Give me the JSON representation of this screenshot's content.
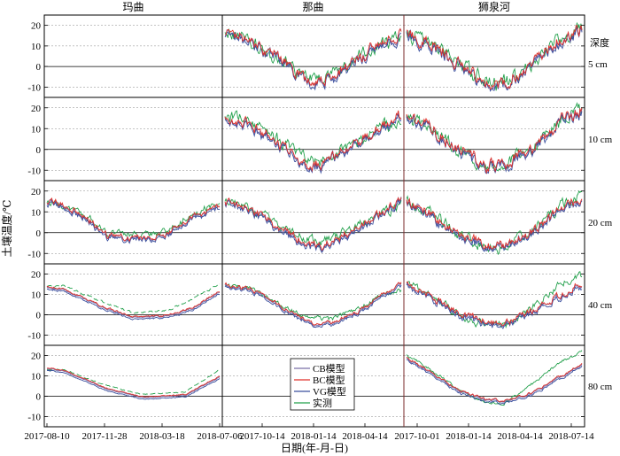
{
  "chart_data": {
    "type": "line",
    "ylabel": "土壤温度/℃",
    "xlabel": "日期(年-月-日)",
    "depth_title": "深度",
    "sites": [
      {
        "name": "玛曲",
        "x_ticks": [
          "2017-08-10",
          "2017-11-28",
          "2018-03-18",
          "2018-07-06"
        ]
      },
      {
        "name": "那曲",
        "x_ticks": [
          "2017-10-14",
          "2018-01-14",
          "2018-04-14"
        ]
      },
      {
        "name": "狮泉河",
        "x_ticks": [
          "2017-10-01",
          "2018-01-14",
          "2018-04-14",
          "2018-07-14"
        ]
      }
    ],
    "depths": [
      "5 cm",
      "10 cm",
      "20 cm",
      "40 cm",
      "80 cm"
    ],
    "y_ticks": [
      -10,
      0,
      10,
      20
    ],
    "ylim": [
      -15,
      25
    ],
    "grid": "dashed horizontal",
    "legend": {
      "placement": "bottom-center",
      "entries": [
        {
          "label": "CB模型",
          "color": "#7b6fa8"
        },
        {
          "label": "BC模型",
          "color": "#e0312a"
        },
        {
          "label": "VG模型",
          "color": "#3a4f9e"
        },
        {
          "label": "实测",
          "color": "#22a04b"
        }
      ]
    },
    "series_colors": {
      "CB": "#7b6fa8",
      "BC": "#e0312a",
      "VG": "#3a4f9e",
      "obs": "#22a04b"
    },
    "panels": [
      {
        "site": 0,
        "depth": 0,
        "empty": true
      },
      {
        "site": 0,
        "depth": 1,
        "empty": true
      },
      {
        "site": 0,
        "depth": 2,
        "empty": false,
        "dashed_obs": false,
        "noise": 1.2,
        "model": [
          [
            0,
            14
          ],
          [
            0.05,
            14
          ],
          [
            0.2,
            8
          ],
          [
            0.35,
            -2
          ],
          [
            0.55,
            -3
          ],
          [
            0.7,
            -1
          ],
          [
            0.85,
            7
          ],
          [
            1,
            12
          ]
        ],
        "obs": [
          [
            0,
            15
          ],
          [
            0.05,
            14
          ],
          [
            0.2,
            9
          ],
          [
            0.35,
            0
          ],
          [
            0.55,
            -1
          ],
          [
            0.7,
            1
          ],
          [
            0.85,
            9
          ],
          [
            1,
            14
          ]
        ]
      },
      {
        "site": 0,
        "depth": 3,
        "empty": false,
        "dashed_obs": true,
        "noise": 0.4,
        "model": [
          [
            0,
            13
          ],
          [
            0.1,
            12
          ],
          [
            0.3,
            4
          ],
          [
            0.5,
            -2
          ],
          [
            0.7,
            -1
          ],
          [
            0.85,
            3
          ],
          [
            1,
            11
          ]
        ],
        "obs": [
          [
            0,
            14
          ],
          [
            0.1,
            14
          ],
          [
            0.3,
            7
          ],
          [
            0.5,
            1
          ],
          [
            0.7,
            2
          ],
          [
            0.85,
            8
          ],
          [
            1,
            15
          ]
        ]
      },
      {
        "site": 0,
        "depth": 4,
        "empty": false,
        "dashed_obs": true,
        "noise": 0.2,
        "model": [
          [
            0,
            13
          ],
          [
            0.1,
            12
          ],
          [
            0.35,
            3
          ],
          [
            0.55,
            -1
          ],
          [
            0.8,
            0
          ],
          [
            1,
            9
          ]
        ],
        "obs": [
          [
            0,
            13
          ],
          [
            0.1,
            13
          ],
          [
            0.35,
            5
          ],
          [
            0.55,
            1
          ],
          [
            0.8,
            2
          ],
          [
            1,
            13
          ]
        ]
      },
      {
        "site": 1,
        "depth": 0,
        "empty": false,
        "dashed_obs": false,
        "noise": 2.4,
        "model": [
          [
            0,
            15
          ],
          [
            0.12,
            13
          ],
          [
            0.3,
            3
          ],
          [
            0.45,
            -7
          ],
          [
            0.55,
            -8
          ],
          [
            0.72,
            1
          ],
          [
            0.88,
            10
          ],
          [
            1,
            15
          ]
        ],
        "obs": [
          [
            0,
            17
          ],
          [
            0.12,
            14
          ],
          [
            0.3,
            4
          ],
          [
            0.45,
            -5
          ],
          [
            0.55,
            -6
          ],
          [
            0.72,
            2
          ],
          [
            0.88,
            11
          ],
          [
            1,
            14
          ]
        ]
      },
      {
        "site": 1,
        "depth": 1,
        "empty": false,
        "dashed_obs": false,
        "noise": 2.2,
        "model": [
          [
            0,
            15
          ],
          [
            0.12,
            13
          ],
          [
            0.3,
            2
          ],
          [
            0.45,
            -7
          ],
          [
            0.55,
            -8
          ],
          [
            0.72,
            1
          ],
          [
            0.88,
            10
          ],
          [
            1,
            16
          ]
        ],
        "obs": [
          [
            0,
            16
          ],
          [
            0.12,
            14
          ],
          [
            0.3,
            5
          ],
          [
            0.45,
            -4
          ],
          [
            0.55,
            -5
          ],
          [
            0.72,
            2
          ],
          [
            0.88,
            11
          ],
          [
            1,
            14
          ]
        ]
      },
      {
        "site": 1,
        "depth": 2,
        "empty": false,
        "dashed_obs": false,
        "noise": 1.6,
        "model": [
          [
            0,
            14
          ],
          [
            0.12,
            12
          ],
          [
            0.3,
            2
          ],
          [
            0.45,
            -6
          ],
          [
            0.55,
            -7
          ],
          [
            0.72,
            0
          ],
          [
            0.88,
            9
          ],
          [
            1,
            15
          ]
        ],
        "obs": [
          [
            0,
            15
          ],
          [
            0.12,
            13
          ],
          [
            0.3,
            4
          ],
          [
            0.45,
            -3
          ],
          [
            0.55,
            -4
          ],
          [
            0.72,
            1
          ],
          [
            0.88,
            10
          ],
          [
            1,
            13
          ]
        ]
      },
      {
        "site": 1,
        "depth": 3,
        "empty": false,
        "dashed_obs": false,
        "noise": 0.8,
        "model": [
          [
            0,
            14
          ],
          [
            0.15,
            12
          ],
          [
            0.35,
            2
          ],
          [
            0.5,
            -5
          ],
          [
            0.6,
            -5
          ],
          [
            0.78,
            2
          ],
          [
            0.9,
            9
          ],
          [
            1,
            15
          ]
        ],
        "obs": [
          [
            0,
            14
          ],
          [
            0.15,
            13
          ],
          [
            0.35,
            3
          ],
          [
            0.5,
            -2
          ],
          [
            0.6,
            -2
          ],
          [
            0.78,
            4
          ],
          [
            0.9,
            10
          ],
          [
            1,
            12
          ]
        ]
      },
      {
        "site": 1,
        "depth": 4,
        "empty": true
      },
      {
        "site": 2,
        "depth": 0,
        "empty": false,
        "dashed_obs": false,
        "noise": 2.6,
        "model": [
          [
            0,
            16
          ],
          [
            0.15,
            10
          ],
          [
            0.3,
            0
          ],
          [
            0.45,
            -9
          ],
          [
            0.55,
            -9
          ],
          [
            0.72,
            0
          ],
          [
            0.88,
            13
          ],
          [
            1,
            18
          ]
        ],
        "obs": [
          [
            0,
            16
          ],
          [
            0.15,
            10
          ],
          [
            0.3,
            1
          ],
          [
            0.45,
            -8
          ],
          [
            0.55,
            -9
          ],
          [
            0.72,
            1
          ],
          [
            0.88,
            14
          ],
          [
            1,
            19
          ]
        ]
      },
      {
        "site": 2,
        "depth": 1,
        "empty": false,
        "dashed_obs": false,
        "noise": 2.4,
        "model": [
          [
            0,
            15
          ],
          [
            0.15,
            9
          ],
          [
            0.3,
            -1
          ],
          [
            0.45,
            -8
          ],
          [
            0.55,
            -8
          ],
          [
            0.72,
            0
          ],
          [
            0.88,
            13
          ],
          [
            1,
            18
          ]
        ],
        "obs": [
          [
            0,
            15
          ],
          [
            0.15,
            9
          ],
          [
            0.3,
            0
          ],
          [
            0.45,
            -7
          ],
          [
            0.55,
            -8
          ],
          [
            0.72,
            1
          ],
          [
            0.88,
            14
          ],
          [
            1,
            19
          ]
        ]
      },
      {
        "site": 2,
        "depth": 2,
        "empty": false,
        "dashed_obs": false,
        "noise": 2.0,
        "model": [
          [
            0,
            14
          ],
          [
            0.15,
            8
          ],
          [
            0.3,
            -2
          ],
          [
            0.45,
            -7
          ],
          [
            0.55,
            -7
          ],
          [
            0.72,
            0
          ],
          [
            0.88,
            11
          ],
          [
            1,
            16
          ]
        ],
        "obs": [
          [
            0,
            15
          ],
          [
            0.15,
            9
          ],
          [
            0.3,
            -1
          ],
          [
            0.45,
            -6
          ],
          [
            0.55,
            -7
          ],
          [
            0.72,
            1
          ],
          [
            0.88,
            13
          ],
          [
            1,
            19
          ]
        ]
      },
      {
        "site": 2,
        "depth": 3,
        "empty": false,
        "dashed_obs": false,
        "noise": 1.4,
        "model": [
          [
            0,
            14
          ],
          [
            0.15,
            8
          ],
          [
            0.3,
            0
          ],
          [
            0.45,
            -4
          ],
          [
            0.55,
            -5
          ],
          [
            0.72,
            1
          ],
          [
            0.88,
            9
          ],
          [
            1,
            15
          ]
        ],
        "obs": [
          [
            0,
            15
          ],
          [
            0.15,
            9
          ],
          [
            0.3,
            0
          ],
          [
            0.45,
            -5
          ],
          [
            0.55,
            -6
          ],
          [
            0.72,
            4
          ],
          [
            0.88,
            15
          ],
          [
            1,
            20
          ]
        ]
      },
      {
        "site": 2,
        "depth": 4,
        "empty": false,
        "dashed_obs": false,
        "noise": 0.5,
        "model": [
          [
            0,
            18
          ],
          [
            0.12,
            12
          ],
          [
            0.3,
            2
          ],
          [
            0.45,
            -2
          ],
          [
            0.55,
            -3
          ],
          [
            0.72,
            1
          ],
          [
            0.88,
            9
          ],
          [
            1,
            15
          ]
        ],
        "obs": [
          [
            0,
            20
          ],
          [
            0.12,
            14
          ],
          [
            0.3,
            3
          ],
          [
            0.45,
            -3
          ],
          [
            0.55,
            -4
          ],
          [
            0.72,
            6
          ],
          [
            0.88,
            17
          ],
          [
            1,
            22
          ]
        ]
      }
    ]
  }
}
